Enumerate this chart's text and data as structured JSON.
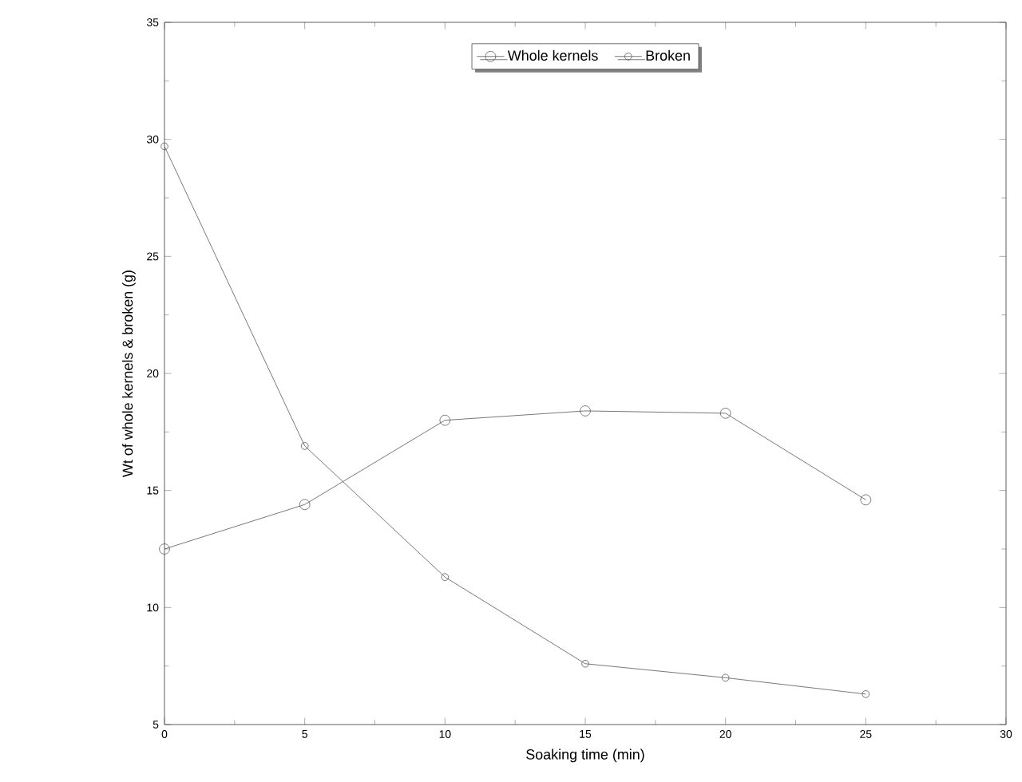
{
  "chart_data": {
    "type": "line",
    "xlabel": "Soaking time (min)",
    "ylabel": "Wt of whole kernels & broken (g)",
    "x": [
      0,
      5,
      10,
      15,
      20,
      25
    ],
    "series": [
      {
        "name": "Whole kernels",
        "color": "#555555",
        "values": [
          12.5,
          14.4,
          18.0,
          18.4,
          18.3,
          14.6
        ]
      },
      {
        "name": "Broken",
        "color": "#555555",
        "values": [
          29.7,
          16.9,
          11.3,
          7.6,
          7.0,
          6.3
        ]
      }
    ],
    "xlim": [
      0,
      30
    ],
    "ylim": [
      5,
      35
    ],
    "xticks": [
      0,
      5,
      10,
      15,
      20,
      25,
      30
    ],
    "yticks": [
      5,
      10,
      15,
      20,
      25,
      30,
      35
    ],
    "grid": false,
    "legend": "top",
    "marker": "circle",
    "line_style": "solid"
  }
}
